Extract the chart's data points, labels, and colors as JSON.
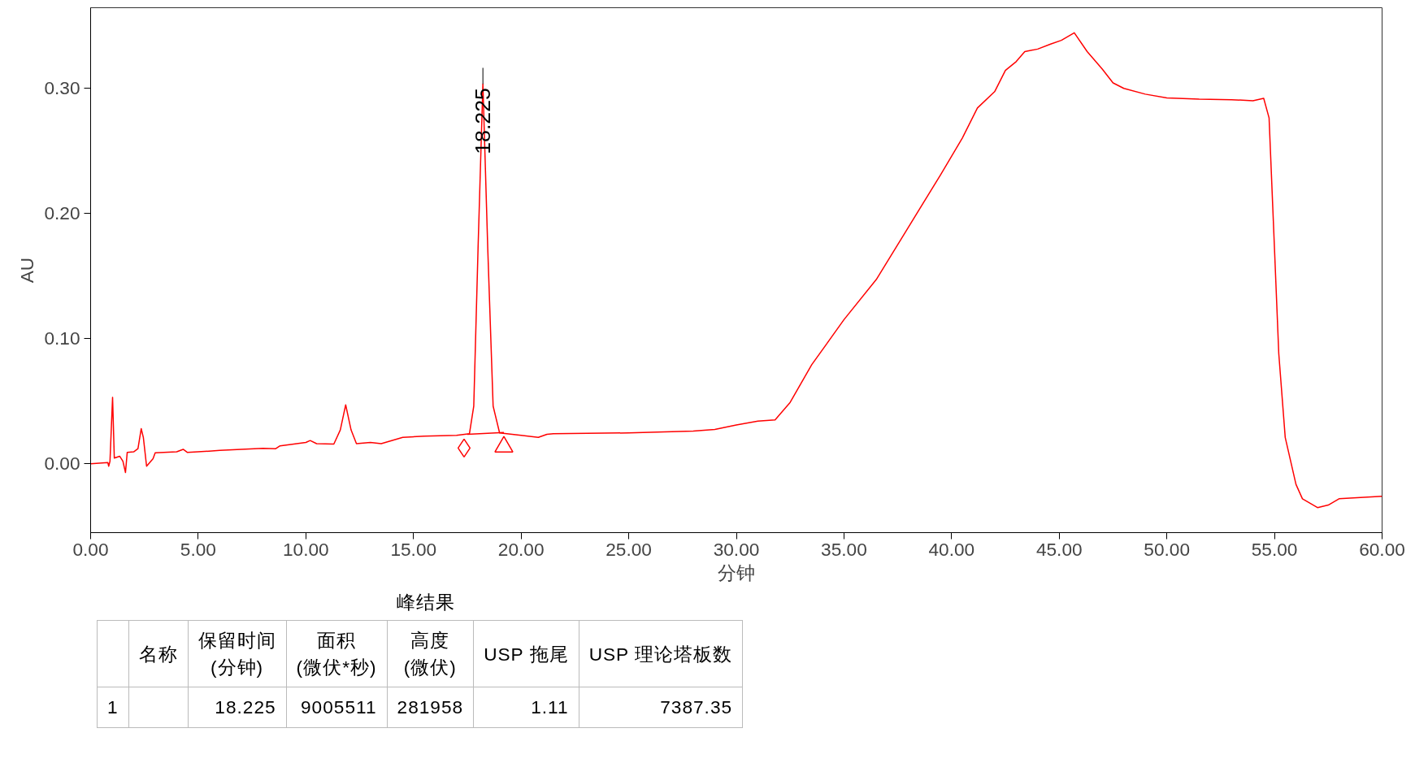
{
  "chart_data": {
    "type": "line",
    "xlabel": "分钟",
    "ylabel": "AU",
    "grid": false,
    "line_style": "solid",
    "xlim": [
      0,
      60
    ],
    "ylim": [
      -0.055,
      0.364
    ],
    "xticks": [
      {
        "value": 0,
        "label": "0.00"
      },
      {
        "value": 5,
        "label": "5.00"
      },
      {
        "value": 10,
        "label": "10.00"
      },
      {
        "value": 15,
        "label": "15.00"
      },
      {
        "value": 20,
        "label": "20.00"
      },
      {
        "value": 25,
        "label": "25.00"
      },
      {
        "value": 30,
        "label": "30.00"
      },
      {
        "value": 35,
        "label": "35.00"
      },
      {
        "value": 40,
        "label": "40.00"
      },
      {
        "value": 45,
        "label": "45.00"
      },
      {
        "value": 50,
        "label": "50.00"
      },
      {
        "value": 55,
        "label": "55.00"
      },
      {
        "value": 60,
        "label": "60.00"
      }
    ],
    "yticks": [
      {
        "value": 0,
        "label": "0.00"
      },
      {
        "value": 0.1,
        "label": "0.10"
      },
      {
        "value": 0.2,
        "label": "0.20"
      },
      {
        "value": 0.3,
        "label": "0.30"
      }
    ],
    "series": [
      {
        "color": "#ff0000",
        "marker": "none",
        "x": [
          0,
          0.8,
          0.84,
          0.9,
          1.02,
          1.1,
          1.35,
          1.5,
          1.62,
          1.7,
          2.0,
          2.2,
          2.35,
          2.45,
          2.6,
          2.9,
          3.0,
          4.0,
          4.3,
          4.5,
          6,
          8,
          8.6,
          8.8,
          10.0,
          10.2,
          10.5,
          11.3,
          11.6,
          11.85,
          12.1,
          12.35,
          13.0,
          13.5,
          14.5,
          15.5,
          17.0,
          17.6,
          17.8,
          18.0,
          18.225,
          18.45,
          18.7,
          19.0,
          20,
          20.8,
          21.2,
          21.5,
          25,
          28,
          29,
          30,
          31,
          31.8,
          32.5,
          33.5,
          35,
          36.5,
          38,
          39.5,
          40.5,
          41.2,
          42,
          42.5,
          43.0,
          43.4,
          44,
          44.6,
          45.1,
          45.7,
          46.3,
          47.0,
          47.5,
          48.0,
          49,
          50,
          51.5,
          53,
          54,
          54.5,
          54.75,
          55,
          55.2,
          55.5,
          56,
          56.3,
          57,
          57.5,
          58,
          60
        ],
        "values": [
          0,
          0.001,
          -0.002,
          0.002,
          0.053,
          0.0045,
          0.006,
          0.002,
          -0.007,
          0.009,
          0.0095,
          0.012,
          0.028,
          0.021,
          -0.002,
          0.004,
          0.0087,
          0.0095,
          0.0115,
          0.009,
          0.0106,
          0.0123,
          0.012,
          0.0143,
          0.017,
          0.0185,
          0.016,
          0.0157,
          0.027,
          0.047,
          0.027,
          0.016,
          0.017,
          0.016,
          0.021,
          0.022,
          0.0227,
          0.024,
          0.046,
          0.172,
          0.303,
          0.172,
          0.046,
          0.0246,
          0.0227,
          0.021,
          0.0235,
          0.024,
          0.0246,
          0.026,
          0.0274,
          0.031,
          0.034,
          0.035,
          0.049,
          0.079,
          0.115,
          0.147,
          0.189,
          0.231,
          0.26,
          0.284,
          0.297,
          0.314,
          0.321,
          0.329,
          0.331,
          0.335,
          0.338,
          0.344,
          0.329,
          0.315,
          0.304,
          0.2996,
          0.295,
          0.292,
          0.291,
          0.2906,
          0.2898,
          0.2917,
          0.276,
          0.172,
          0.088,
          0.021,
          -0.0165,
          -0.028,
          -0.035,
          -0.033,
          -0.028,
          -0.026
        ]
      },
      {
        "type": "line",
        "color": "#ff0000",
        "marker": "none",
        "x": [
          17.5,
          19.2
        ],
        "values": [
          0.0235,
          0.025
        ]
      },
      {
        "type": "scatter",
        "color": "#ff0000",
        "marker": "diamond",
        "x": [
          17.35
        ],
        "values": [
          0.0125
        ]
      },
      {
        "type": "scatter",
        "color": "#ff0000",
        "marker": "triangle",
        "x": [
          19.2
        ],
        "values": [
          0.0135
        ]
      }
    ],
    "annotations": [
      {
        "text": "18.225",
        "x": 18.225,
        "y": 0.303
      },
      "峰结果",
      "名称",
      "保留时间\n(分钟)",
      "面积\n(微伏*秒)",
      "高度\n(微伏)",
      "USP 拖尾",
      "USP 理论塔板数",
      "1",
      "18.225",
      "9005511",
      "281958",
      "1.11",
      "7387.35"
    ]
  }
}
